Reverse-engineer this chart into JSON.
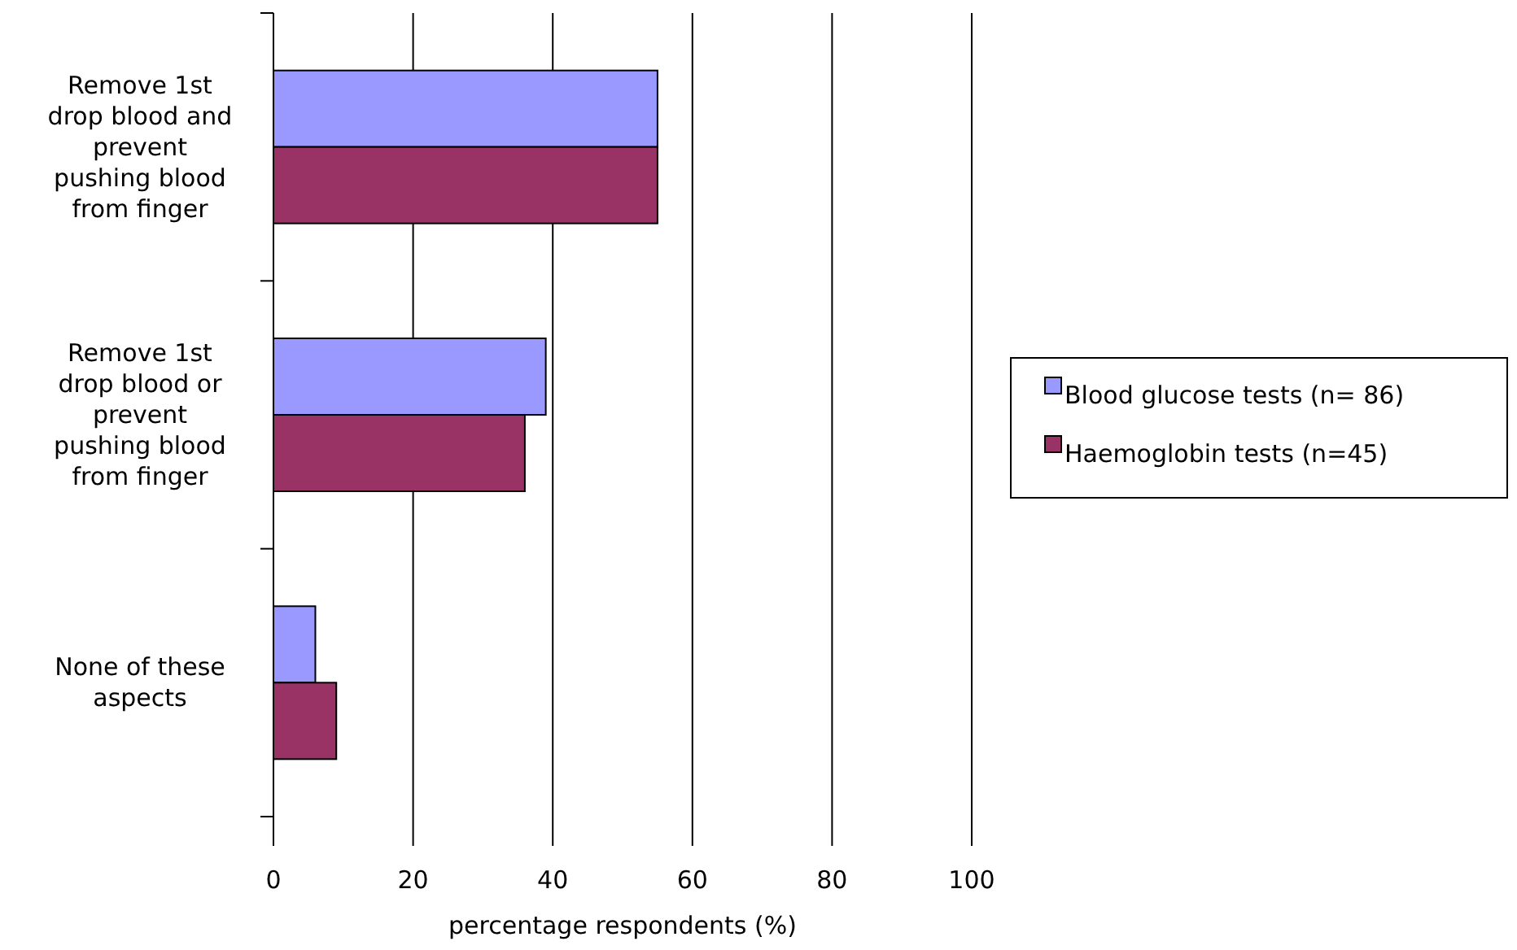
{
  "chart_data": {
    "type": "bar",
    "orientation": "horizontal",
    "xlabel": "percentage respondents (%)",
    "categories": [
      "Remove 1st drop blood and prevent pushing blood from finger",
      "Remove 1st drop blood or prevent pushing blood from finger",
      "None of these aspects"
    ],
    "series": [
      {
        "name": "Blood glucose tests (n= 86)",
        "color": "#9999ff",
        "values": [
          55,
          39,
          6
        ]
      },
      {
        "name": "Haemoglobin tests (n=45)",
        "color": "#993366",
        "values": [
          55,
          36,
          9
        ]
      }
    ],
    "xlim": [
      0,
      100
    ],
    "xticks": [
      0,
      20,
      40,
      60,
      80,
      100
    ],
    "grid": "x",
    "legend": "right"
  }
}
